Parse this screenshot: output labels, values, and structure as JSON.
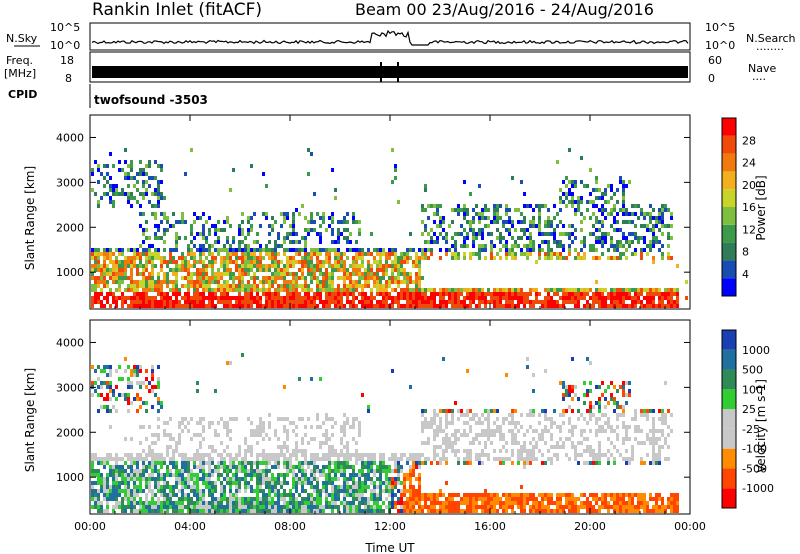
{
  "header": {
    "station": "Rankin Inlet (fitACF)",
    "beam_date": "Beam 00  23/Aug/2016 - 24/Aug/2016"
  },
  "sky_panel": {
    "left_label": "N.Sky",
    "tick_top": "10^5",
    "tick_bottom": "10^0",
    "right_ticks_top": "10^5",
    "right_ticks_bottom": "10^0",
    "right_label": "N.Search",
    "right_dots": "........"
  },
  "freq_panel": {
    "label_line1": "Freq.",
    "label_line2": "[MHz]",
    "tick_top": "18",
    "tick_bottom": "8",
    "right_tick_top": "60",
    "right_tick_bottom": "0",
    "right_label": "Nave",
    "right_dots": "...."
  },
  "cpid_panel": {
    "label": "CPID",
    "value": "twofsound  -3503"
  },
  "ylabel": "Slant Range [km]",
  "xlabel": "Time UT",
  "colors": {
    "power": [
      "#0000ff",
      "#1a4db3",
      "#2e7d56",
      "#3c9a4a",
      "#7fbf3f",
      "#c8d42a",
      "#f2b01e",
      "#f07a10",
      "#f04a0a",
      "#ff0000"
    ],
    "velocity": [
      "#ff0000",
      "#ff4500",
      "#ff8c00",
      "#c8c8c8",
      "#c8c8c8",
      "#32cd32",
      "#2e8b57",
      "#1f6f9f",
      "#1a3fb3"
    ]
  },
  "chart_data": [
    {
      "type": "heatmap",
      "name": "power",
      "x": [
        "00:00",
        "04:00",
        "08:00",
        "12:00",
        "16:00",
        "20:00",
        "00:00"
      ],
      "ylim": [
        180,
        4500
      ],
      "yticks": [
        1000,
        2000,
        3000,
        4000
      ],
      "colorbar_label": "Power [dB]",
      "colorbar_ticks": [
        "28",
        "24",
        "20",
        "16",
        "12",
        "8",
        "4"
      ],
      "colorbar_range": [
        0,
        32
      ]
    },
    {
      "type": "heatmap",
      "name": "velocity",
      "x": [
        "00:00",
        "04:00",
        "08:00",
        "12:00",
        "16:00",
        "20:00",
        "00:00"
      ],
      "ylim": [
        180,
        4500
      ],
      "yticks": [
        1000,
        2000,
        3000,
        4000
      ],
      "colorbar_label": "Velocity [m s-1]",
      "colorbar_ticks": [
        "1000",
        "500",
        "100",
        "25",
        "-25",
        "-100",
        "-500",
        "-1000"
      ]
    }
  ]
}
